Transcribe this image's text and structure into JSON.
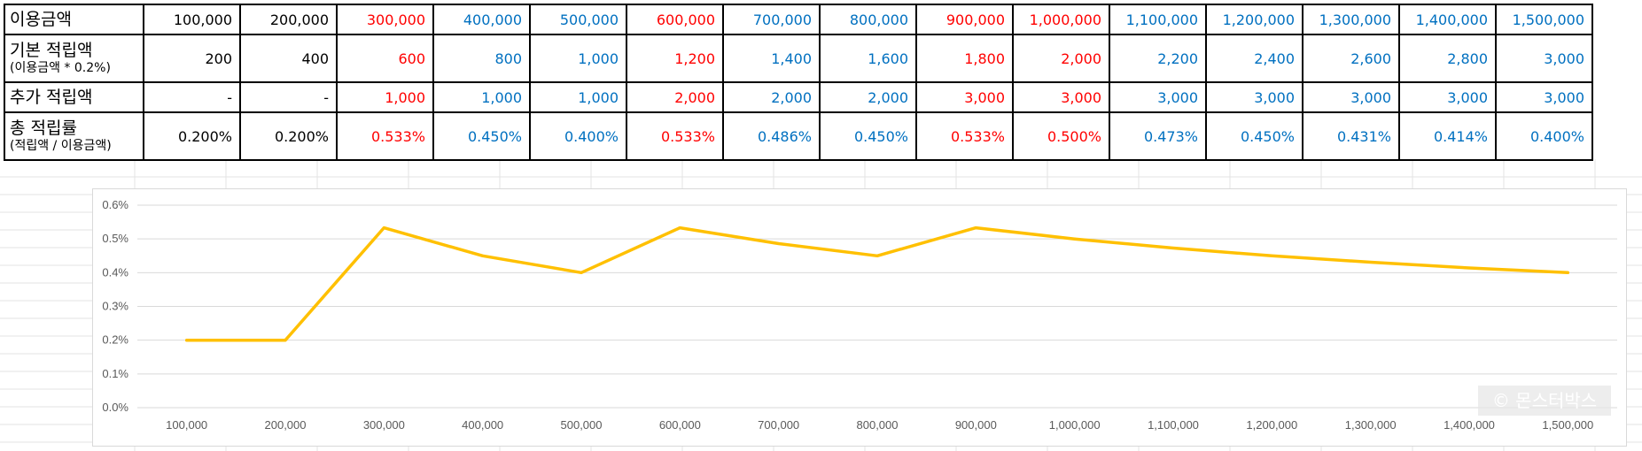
{
  "table": {
    "row_labels": {
      "usage": {
        "main": "이용금액"
      },
      "base": {
        "main": "기본 적립액",
        "sub": "(이용금액 * 0.2%)"
      },
      "extra": {
        "main": "추가 적립액"
      },
      "rate": {
        "main": "총 적립률",
        "sub": "(적립액 / 이용금액)"
      }
    },
    "usage": [
      "100,000",
      "200,000",
      "300,000",
      "400,000",
      "500,000",
      "600,000",
      "700,000",
      "800,000",
      "900,000",
      "1,000,000",
      "1,100,000",
      "1,200,000",
      "1,300,000",
      "1,400,000",
      "1,500,000"
    ],
    "base": [
      "200",
      "400",
      "600",
      "800",
      "1,000",
      "1,200",
      "1,400",
      "1,600",
      "1,800",
      "2,000",
      "2,200",
      "2,400",
      "2,600",
      "2,800",
      "3,000"
    ],
    "extra": [
      "-",
      "-",
      "1,000",
      "1,000",
      "1,000",
      "2,000",
      "2,000",
      "2,000",
      "3,000",
      "3,000",
      "3,000",
      "3,000",
      "3,000",
      "3,000",
      "3,000"
    ],
    "rate": [
      "0.200%",
      "0.200%",
      "0.533%",
      "0.450%",
      "0.400%",
      "0.533%",
      "0.486%",
      "0.450%",
      "0.533%",
      "0.500%",
      "0.473%",
      "0.450%",
      "0.431%",
      "0.414%",
      "0.400%"
    ],
    "column_colors": [
      "black",
      "black",
      "red",
      "blue",
      "blue",
      "red",
      "blue",
      "blue",
      "red",
      "red",
      "blue",
      "blue",
      "blue",
      "blue",
      "blue"
    ]
  },
  "colors": {
    "red": "#ff0000",
    "blue": "#0070c0",
    "line": "#ffc000",
    "axis_text": "#595959",
    "gridline": "#d9d9d9"
  },
  "watermark": "© 몬스터박스",
  "chart_data": {
    "type": "line",
    "categories": [
      "100,000",
      "200,000",
      "300,000",
      "400,000",
      "500,000",
      "600,000",
      "700,000",
      "800,000",
      "900,000",
      "1,000,000",
      "1,100,000",
      "1,200,000",
      "1,300,000",
      "1,400,000",
      "1,500,000"
    ],
    "series": [
      {
        "values": [
          0.2,
          0.2,
          0.533,
          0.45,
          0.4,
          0.533,
          0.486,
          0.45,
          0.533,
          0.5,
          0.473,
          0.45,
          0.431,
          0.414,
          0.4
        ]
      }
    ],
    "y_unit": "%",
    "y_ticks": [
      "0.0%",
      "0.1%",
      "0.2%",
      "0.3%",
      "0.4%",
      "0.5%",
      "0.6%"
    ],
    "ylim": [
      0,
      0.6
    ],
    "grid": true,
    "legend": "none"
  }
}
